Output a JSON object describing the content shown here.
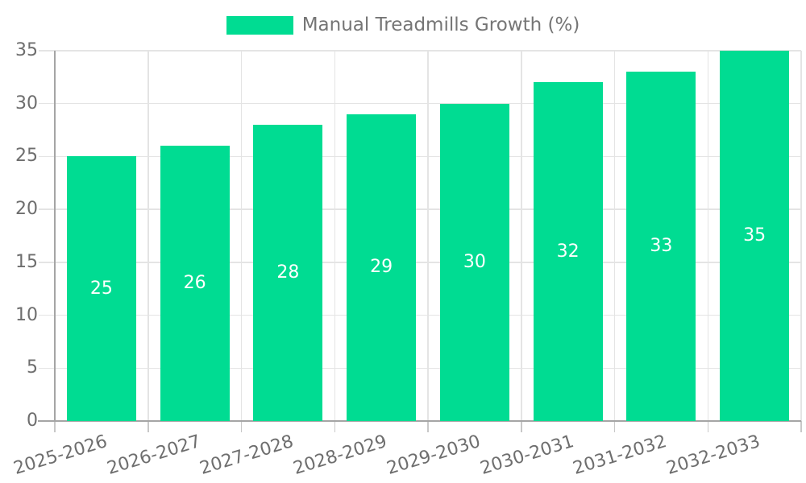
{
  "legend": {
    "label": "Manual Treadmills Growth (%)",
    "swatch_color": "#00DC92"
  },
  "chart_data": {
    "type": "bar",
    "title": "Manual Treadmills Growth (%)",
    "categories": [
      "2025-2026",
      "2026-2027",
      "2027-2028",
      "2028-2029",
      "2029-2030",
      "2030-2031",
      "2031-2032",
      "2032-2033"
    ],
    "values": [
      25,
      26,
      28,
      29,
      30,
      32,
      33,
      35
    ],
    "xlabel": "",
    "ylabel": "",
    "ylim": [
      0,
      35
    ],
    "yticks": [
      0,
      5,
      10,
      15,
      20,
      25,
      30,
      35
    ],
    "grid": true,
    "legend_position": "top",
    "bar_color": "#00DC92",
    "value_label_color": "#FFFFFF",
    "value_label_position": "inside-center"
  },
  "colors": {
    "background": "#FFFFFF",
    "gridline": "#E4E4E4",
    "axis_line": "#A5A5A5",
    "tick_mark": "#C8C8C8",
    "axis_label_text": "#6E6E6E",
    "legend_text": "#757575"
  }
}
